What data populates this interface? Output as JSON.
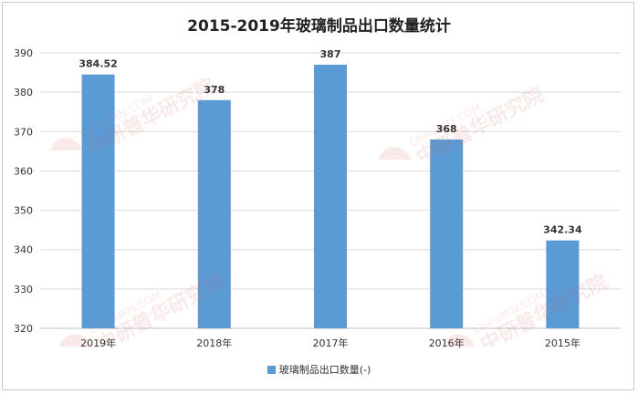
{
  "chart_data": {
    "type": "bar",
    "title": "2015-2019年玻璃制品出口数量统计",
    "categories": [
      "2019年",
      "2018年",
      "2017年",
      "2016年",
      "2015年"
    ],
    "series": [
      {
        "name": "玻璃制品出口数量(-)",
        "values": [
          384.52,
          378,
          387,
          368,
          342.34
        ],
        "color": "#5b9bd5"
      }
    ],
    "data_labels": [
      "384.52",
      "378",
      "387",
      "368",
      "342.34"
    ],
    "yticks": [
      "320",
      "330",
      "340",
      "350",
      "360",
      "370",
      "380",
      "390"
    ],
    "ylim": [
      320,
      390
    ],
    "grid": true,
    "legend_position": "bottom"
  },
  "watermark": {
    "url_text": "ChinaIRN.COM",
    "cn_text": "中研普华研究院",
    "logo_text": "CIRN",
    "color": "#d9534f"
  }
}
